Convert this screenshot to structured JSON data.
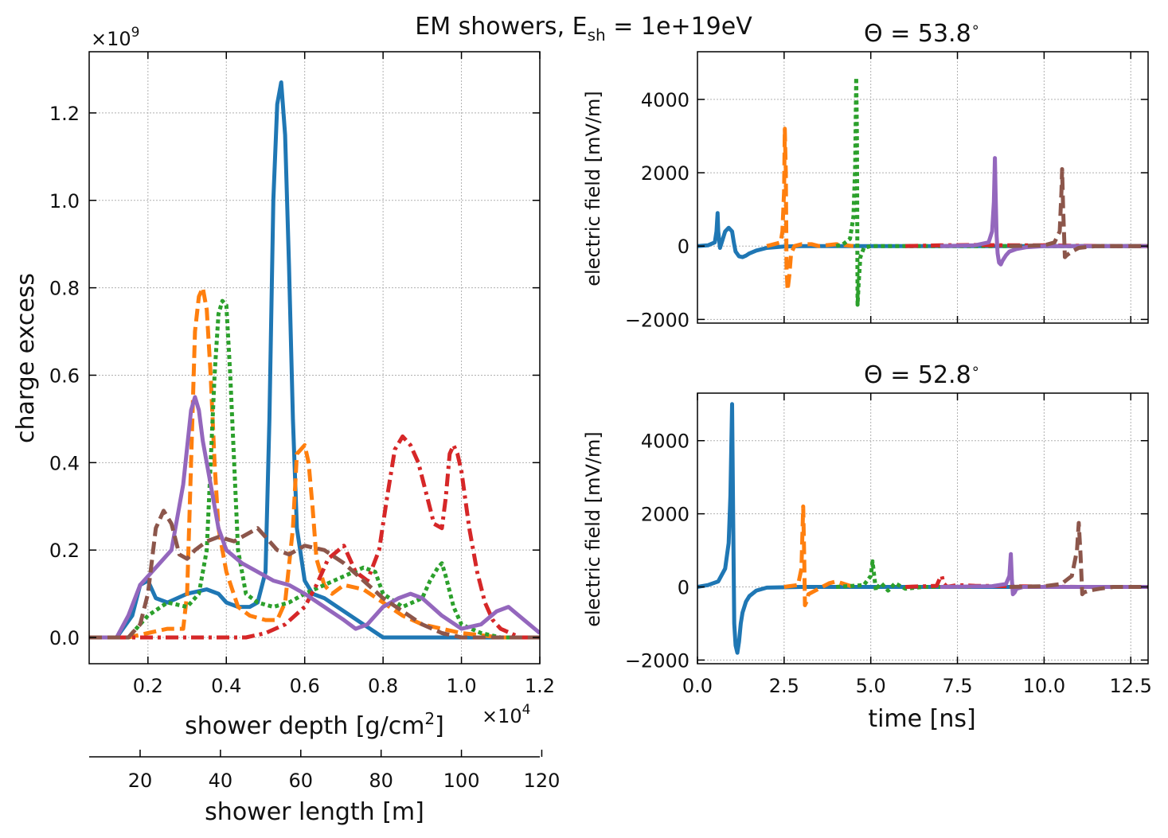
{
  "suptitle": {
    "prefix": "EM showers, E",
    "sub": "sh",
    "suffix": " = 1e+19eV"
  },
  "chart_data": [
    {
      "type": "line",
      "id": "left",
      "ylabel": "charge excess",
      "xlabel_pre": "shower depth [g/cm",
      "xlabel_sup": "2",
      "xlabel_post": "]",
      "x_multiplier": "×10",
      "x_multiplier_exp": "4",
      "y_multiplier": "×10",
      "y_multiplier_exp": "9",
      "secondary_xlabel": "shower length [m]",
      "xlim": [
        0.05,
        1.2
      ],
      "ylim": [
        -0.06,
        1.34
      ],
      "xticks": [
        0.2,
        0.4,
        0.6,
        0.8,
        1.0,
        1.2
      ],
      "xtick_labels": [
        "0.2",
        "0.4",
        "0.6",
        "0.8",
        "1.0",
        "1.2"
      ],
      "yticks": [
        0.0,
        0.2,
        0.4,
        0.6,
        0.8,
        1.0,
        1.2
      ],
      "ytick_labels": [
        "0.0",
        "0.2",
        "0.4",
        "0.6",
        "0.8",
        "1.0",
        "1.2"
      ],
      "secondary_ticks": [
        0.18,
        0.385,
        0.59,
        0.795,
        1.0,
        1.205
      ],
      "secondary_tick_labels": [
        "20",
        "40",
        "60",
        "80",
        "100",
        "120"
      ],
      "series": [
        {
          "name": "s1",
          "color": "#1f77b4",
          "style": "solid",
          "x": [
            0.05,
            0.12,
            0.16,
            0.18,
            0.2,
            0.22,
            0.25,
            0.3,
            0.35,
            0.38,
            0.4,
            0.43,
            0.46,
            0.48,
            0.5,
            0.51,
            0.52,
            0.53,
            0.54,
            0.55,
            0.56,
            0.57,
            0.58,
            0.6,
            0.62,
            0.65,
            0.7,
            0.75,
            0.8,
            1.2
          ],
          "y": [
            0,
            0,
            0.05,
            0.12,
            0.13,
            0.09,
            0.08,
            0.1,
            0.11,
            0.1,
            0.08,
            0.07,
            0.07,
            0.08,
            0.15,
            0.5,
            1.0,
            1.22,
            1.27,
            1.15,
            0.85,
            0.5,
            0.25,
            0.13,
            0.1,
            0.09,
            0.06,
            0.03,
            0.0,
            0.0
          ]
        },
        {
          "name": "s2",
          "color": "#ff7f0e",
          "style": "dashed",
          "x": [
            0.05,
            0.15,
            0.2,
            0.25,
            0.29,
            0.3,
            0.31,
            0.32,
            0.33,
            0.34,
            0.35,
            0.36,
            0.37,
            0.38,
            0.4,
            0.43,
            0.46,
            0.5,
            0.53,
            0.55,
            0.57,
            0.58,
            0.6,
            0.61,
            0.62,
            0.63,
            0.65,
            0.67,
            0.7,
            0.75,
            0.8,
            0.85,
            0.9,
            1.0,
            1.1,
            1.2
          ],
          "y": [
            0,
            0,
            0.01,
            0.02,
            0.02,
            0.1,
            0.4,
            0.7,
            0.78,
            0.8,
            0.75,
            0.6,
            0.4,
            0.25,
            0.15,
            0.07,
            0.05,
            0.04,
            0.04,
            0.08,
            0.25,
            0.42,
            0.44,
            0.4,
            0.3,
            0.18,
            0.12,
            0.1,
            0.12,
            0.11,
            0.08,
            0.05,
            0.03,
            0.01,
            0.0,
            0.0
          ]
        },
        {
          "name": "s3",
          "color": "#2ca02c",
          "style": "dotted",
          "x": [
            0.05,
            0.15,
            0.2,
            0.25,
            0.3,
            0.33,
            0.35,
            0.36,
            0.37,
            0.38,
            0.39,
            0.4,
            0.41,
            0.42,
            0.43,
            0.45,
            0.48,
            0.52,
            0.56,
            0.6,
            0.65,
            0.7,
            0.75,
            0.78,
            0.8,
            0.85,
            0.9,
            0.92,
            0.94,
            0.95,
            0.96,
            0.98,
            1.0,
            1.05,
            1.1,
            1.2
          ],
          "y": [
            0,
            0,
            0.05,
            0.08,
            0.07,
            0.1,
            0.2,
            0.4,
            0.6,
            0.74,
            0.77,
            0.76,
            0.6,
            0.4,
            0.2,
            0.1,
            0.08,
            0.07,
            0.08,
            0.1,
            0.12,
            0.14,
            0.16,
            0.15,
            0.1,
            0.07,
            0.09,
            0.13,
            0.16,
            0.17,
            0.14,
            0.07,
            0.03,
            0.01,
            0.0,
            0.0
          ]
        },
        {
          "name": "s4",
          "color": "#d62728",
          "style": "dashdot",
          "x": [
            0.05,
            0.2,
            0.3,
            0.4,
            0.45,
            0.5,
            0.55,
            0.6,
            0.63,
            0.66,
            0.7,
            0.73,
            0.76,
            0.79,
            0.81,
            0.83,
            0.85,
            0.87,
            0.89,
            0.91,
            0.93,
            0.95,
            0.96,
            0.97,
            0.98,
            0.99,
            1.0,
            1.02,
            1.04,
            1.06,
            1.08,
            1.1,
            1.15,
            1.2
          ],
          "y": [
            0,
            0,
            0,
            0,
            0,
            0.01,
            0.03,
            0.07,
            0.12,
            0.18,
            0.21,
            0.15,
            0.13,
            0.2,
            0.32,
            0.43,
            0.46,
            0.44,
            0.4,
            0.33,
            0.26,
            0.25,
            0.32,
            0.42,
            0.44,
            0.42,
            0.38,
            0.25,
            0.15,
            0.08,
            0.04,
            0.02,
            0.0,
            0.0
          ]
        },
        {
          "name": "s5",
          "color": "#9467bd",
          "style": "solid",
          "x": [
            0.05,
            0.12,
            0.15,
            0.18,
            0.22,
            0.26,
            0.29,
            0.31,
            0.32,
            0.33,
            0.34,
            0.36,
            0.38,
            0.4,
            0.44,
            0.48,
            0.52,
            0.56,
            0.6,
            0.65,
            0.7,
            0.73,
            0.76,
            0.8,
            0.84,
            0.87,
            0.9,
            0.95,
            1.0,
            1.05,
            1.09,
            1.12,
            1.16,
            1.2
          ],
          "y": [
            0,
            0,
            0.05,
            0.12,
            0.16,
            0.2,
            0.35,
            0.52,
            0.55,
            0.52,
            0.45,
            0.35,
            0.25,
            0.2,
            0.17,
            0.15,
            0.13,
            0.12,
            0.1,
            0.07,
            0.04,
            0.02,
            0.03,
            0.07,
            0.09,
            0.1,
            0.09,
            0.05,
            0.02,
            0.03,
            0.06,
            0.07,
            0.04,
            0.01
          ]
        },
        {
          "name": "s6",
          "color": "#8c564b",
          "style": "dashed",
          "x": [
            0.05,
            0.15,
            0.18,
            0.2,
            0.22,
            0.24,
            0.26,
            0.28,
            0.3,
            0.32,
            0.35,
            0.38,
            0.42,
            0.46,
            0.48,
            0.5,
            0.53,
            0.56,
            0.6,
            0.65,
            0.7,
            0.75,
            0.8,
            0.85,
            0.9,
            0.95,
            1.0,
            1.05,
            1.1,
            1.2
          ],
          "y": [
            0,
            0,
            0.03,
            0.1,
            0.25,
            0.29,
            0.26,
            0.19,
            0.18,
            0.2,
            0.22,
            0.23,
            0.22,
            0.24,
            0.25,
            0.23,
            0.2,
            0.19,
            0.21,
            0.2,
            0.17,
            0.13,
            0.09,
            0.06,
            0.03,
            0.01,
            0.0,
            0.0,
            0.0,
            0.0
          ]
        }
      ]
    },
    {
      "type": "line",
      "id": "top-right",
      "title_prefix": "Θ = 53.8",
      "title_suffix": "∘",
      "ylabel": "electric field [mV/m]",
      "xlim": [
        0,
        13
      ],
      "ylim": [
        -2100,
        5300
      ],
      "xticks": [
        2.5,
        5.0,
        7.5,
        10.0,
        12.5
      ],
      "yticks": [
        -2000,
        0,
        2000,
        4000
      ],
      "ytick_labels": [
        "−2000",
        "0",
        "2000",
        "4000"
      ],
      "series": [
        {
          "name": "s1",
          "color": "#1f77b4",
          "style": "solid",
          "x": [
            0,
            0.3,
            0.5,
            0.55,
            0.58,
            0.6,
            0.65,
            0.7,
            0.8,
            0.9,
            1.0,
            1.05,
            1.1,
            1.2,
            1.3,
            1.4,
            1.5,
            1.7,
            2.0,
            2.5,
            3.0,
            4.0,
            13
          ],
          "y": [
            0,
            20,
            100,
            400,
            900,
            400,
            -50,
            100,
            400,
            500,
            400,
            100,
            -150,
            -280,
            -300,
            -260,
            -200,
            -120,
            -50,
            -10,
            0,
            0,
            0
          ]
        },
        {
          "name": "s2",
          "color": "#ff7f0e",
          "style": "dashed",
          "x": [
            2.0,
            2.2,
            2.4,
            2.45,
            2.5,
            2.52,
            2.55,
            2.57,
            2.6,
            2.65,
            2.7,
            2.8,
            3.0,
            3.3,
            3.5,
            4.0,
            4.5
          ],
          "y": [
            0,
            50,
            100,
            400,
            1500,
            3200,
            2000,
            -600,
            -1200,
            -800,
            -200,
            0,
            50,
            50,
            0,
            50,
            0
          ]
        },
        {
          "name": "s3",
          "color": "#2ca02c",
          "style": "dotted",
          "x": [
            4.0,
            4.2,
            4.4,
            4.5,
            4.55,
            4.58,
            4.6,
            4.62,
            4.65,
            4.7,
            4.8,
            5.0,
            5.5,
            6.0,
            7.0,
            8.0,
            13
          ],
          "y": [
            0,
            50,
            200,
            800,
            2200,
            4600,
            3000,
            -1600,
            -1000,
            -300,
            -50,
            0,
            0,
            0,
            0,
            0,
            0
          ]
        },
        {
          "name": "s4",
          "color": "#d62728",
          "style": "dashdot",
          "x": [
            6.0,
            7.0,
            8.0,
            9.0,
            10.0,
            11.0,
            12.0,
            13
          ],
          "y": [
            0,
            20,
            30,
            20,
            20,
            10,
            0,
            0
          ]
        },
        {
          "name": "s5",
          "color": "#9467bd",
          "style": "solid",
          "x": [
            7.0,
            8.0,
            8.4,
            8.5,
            8.55,
            8.58,
            8.6,
            8.63,
            8.66,
            8.7,
            8.75,
            8.8,
            8.9,
            9.0,
            9.2,
            9.5,
            10,
            11,
            12,
            13
          ],
          "y": [
            0,
            20,
            100,
            400,
            1200,
            2400,
            1500,
            300,
            -200,
            -450,
            -500,
            -400,
            -250,
            -150,
            -80,
            -30,
            0,
            0,
            0,
            0
          ]
        },
        {
          "name": "s6",
          "color": "#8c564b",
          "style": "dashed",
          "x": [
            9.0,
            10.0,
            10.3,
            10.45,
            10.5,
            10.52,
            10.55,
            10.6,
            10.65,
            10.8,
            11.0,
            11.5,
            12.0,
            13
          ],
          "y": [
            0,
            20,
            100,
            400,
            1500,
            2100,
            1000,
            -300,
            -250,
            -150,
            -50,
            0,
            0,
            0
          ]
        }
      ]
    },
    {
      "type": "line",
      "id": "bottom-right",
      "title_prefix": "Θ = 52.8",
      "title_suffix": "∘",
      "ylabel": "electric field [mV/m]",
      "xlabel": "time [ns]",
      "xlim": [
        0,
        13
      ],
      "ylim": [
        -2100,
        5300
      ],
      "xticks": [
        0.0,
        2.5,
        5.0,
        7.5,
        10.0,
        12.5
      ],
      "xtick_labels": [
        "0.0",
        "2.5",
        "5.0",
        "7.5",
        "10.0",
        "12.5"
      ],
      "yticks": [
        -2000,
        0,
        2000,
        4000
      ],
      "ytick_labels": [
        "−2000",
        "0",
        "2000",
        "4000"
      ],
      "series": [
        {
          "name": "s1",
          "color": "#1f77b4",
          "style": "solid",
          "x": [
            0,
            0.3,
            0.6,
            0.8,
            0.9,
            0.95,
            1.0,
            1.03,
            1.06,
            1.1,
            1.15,
            1.2,
            1.25,
            1.3,
            1.4,
            1.5,
            1.7,
            2.0,
            3.0,
            13
          ],
          "y": [
            0,
            50,
            150,
            500,
            1200,
            2500,
            5000,
            2000,
            -1000,
            -1600,
            -1800,
            -1500,
            -1000,
            -700,
            -400,
            -250,
            -100,
            -20,
            0,
            0
          ]
        },
        {
          "name": "s2",
          "color": "#ff7f0e",
          "style": "dashed",
          "x": [
            2.5,
            2.9,
            3.0,
            3.05,
            3.08,
            3.1,
            3.15,
            3.2,
            3.4,
            3.6,
            3.8,
            4.0,
            4.5
          ],
          "y": [
            0,
            50,
            500,
            2200,
            800,
            -500,
            -400,
            -200,
            -100,
            0,
            100,
            150,
            0
          ]
        },
        {
          "name": "s3",
          "color": "#2ca02c",
          "style": "dotted",
          "x": [
            4.0,
            4.8,
            5.0,
            5.05,
            5.1,
            5.15,
            5.2,
            5.3,
            5.5,
            5.7,
            6.0,
            6.5,
            7.0,
            8.0
          ],
          "y": [
            0,
            50,
            300,
            700,
            300,
            -100,
            0,
            100,
            -100,
            100,
            -50,
            0,
            0,
            0
          ]
        },
        {
          "name": "s4",
          "color": "#d62728",
          "style": "dashdot",
          "x": [
            6.0,
            6.9,
            7.0,
            7.05,
            7.1,
            7.2,
            7.5,
            8.0,
            9.0,
            10.0,
            11.0,
            12.0,
            13
          ],
          "y": [
            0,
            30,
            250,
            300,
            100,
            0,
            50,
            30,
            20,
            10,
            0,
            0,
            0
          ]
        },
        {
          "name": "s5",
          "color": "#9467bd",
          "style": "solid",
          "x": [
            7.0,
            8.5,
            8.9,
            9.0,
            9.04,
            9.07,
            9.1,
            9.15,
            9.2,
            9.4,
            10,
            11,
            12,
            13
          ],
          "y": [
            0,
            20,
            80,
            300,
            900,
            200,
            -200,
            -150,
            -50,
            0,
            0,
            0,
            0,
            0
          ]
        },
        {
          "name": "s6",
          "color": "#8c564b",
          "style": "dashed",
          "x": [
            9.0,
            10.0,
            10.5,
            10.8,
            10.95,
            11.0,
            11.05,
            11.1,
            11.15,
            11.3,
            11.6,
            12.0,
            13
          ],
          "y": [
            0,
            20,
            80,
            300,
            1000,
            1750,
            900,
            -200,
            -150,
            -100,
            -50,
            0,
            0
          ]
        }
      ]
    }
  ]
}
